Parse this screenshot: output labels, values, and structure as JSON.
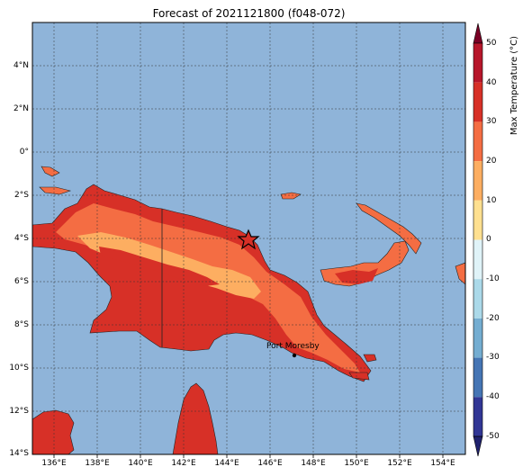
{
  "title": "Forecast of 2021121800 (f048-072)",
  "map": {
    "lat_ticks": [
      "4°N",
      "2°N",
      "0°",
      "2°S",
      "4°S",
      "6°S",
      "8°S",
      "10°S",
      "12°S",
      "14°S"
    ],
    "lon_ticks": [
      "136°E",
      "138°E",
      "140°E",
      "142°E",
      "144°E",
      "146°E",
      "148°E",
      "150°E",
      "152°E",
      "154°E"
    ],
    "city_label": "Port Moresby",
    "ocean_color": "#8fb4d9"
  },
  "colorbar": {
    "label": "Max Temperature (°C)",
    "ticks": [
      "50",
      "40",
      "30",
      "20",
      "10",
      "0",
      "-10",
      "-20",
      "-30",
      "-40",
      "-50"
    ],
    "colors": [
      "#7a0025",
      "#b7162a",
      "#d73027",
      "#f46d43",
      "#fdae61",
      "#fee090",
      "#e0f3f8",
      "#abd9e9",
      "#74add1",
      "#4575b4",
      "#313695",
      "#20226e"
    ]
  }
}
